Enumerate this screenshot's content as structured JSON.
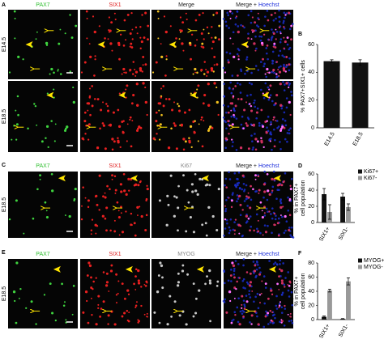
{
  "figure": [
    {
      "label": "A",
      "channels": [
        "PAX7",
        "SIX1",
        "Merge",
        "Merge +",
        "Hoechst"
      ],
      "stages": [
        "E14.5",
        "E18.5"
      ]
    },
    {
      "label": "C",
      "channels": [
        "PAX7",
        "SIX1",
        "Ki67",
        "Merge +",
        "Hoechst"
      ],
      "stages": [
        "E18.5"
      ]
    },
    {
      "label": "E",
      "channels": [
        "PAX7",
        "SIX1",
        "MYOG",
        "Merge +",
        "Hoechst"
      ],
      "stages": [
        "E18.5"
      ]
    }
  ],
  "chart_data": [
    {
      "type": "bar",
      "label": "B",
      "ylabel": [
        "% PAX7+SIX1+ cells"
      ],
      "categories": [
        "E14.5",
        "E18.5"
      ],
      "values": [
        48,
        47
      ],
      "errors": [
        1,
        2
      ],
      "color": "#111111",
      "ylim": [
        0,
        60
      ],
      "yticks": [
        0,
        20,
        40,
        60
      ]
    },
    {
      "type": "bar",
      "label": "D",
      "ylabel": [
        "% in PAX7+",
        "cell population"
      ],
      "categories": [
        "SIX1+",
        "SIX1-"
      ],
      "series": [
        {
          "name": "Ki67+",
          "color": "#111111",
          "values": [
            35,
            32
          ],
          "errors": [
            7,
            4
          ]
        },
        {
          "name": "Ki67-",
          "color": "#999999",
          "values": [
            13,
            19
          ],
          "errors": [
            9,
            4
          ]
        }
      ],
      "ylim": [
        0,
        60
      ],
      "yticks": [
        0,
        20,
        40,
        60
      ],
      "legend": "top-right"
    },
    {
      "type": "bar",
      "label": "F",
      "ylabel": [
        "% in PAX7+",
        "cell population"
      ],
      "categories": [
        "SIX1+",
        "SIX1-"
      ],
      "series": [
        {
          "name": "MYOG+",
          "color": "#111111",
          "values": [
            4,
            1
          ],
          "errors": [
            1,
            0.5
          ]
        },
        {
          "name": "MYOG-",
          "color": "#999999",
          "values": [
            41,
            54
          ],
          "errors": [
            2,
            5
          ]
        }
      ],
      "ylim": [
        0,
        80
      ],
      "yticks": [
        0,
        20,
        40,
        60,
        80
      ],
      "legend": "top-right"
    }
  ]
}
